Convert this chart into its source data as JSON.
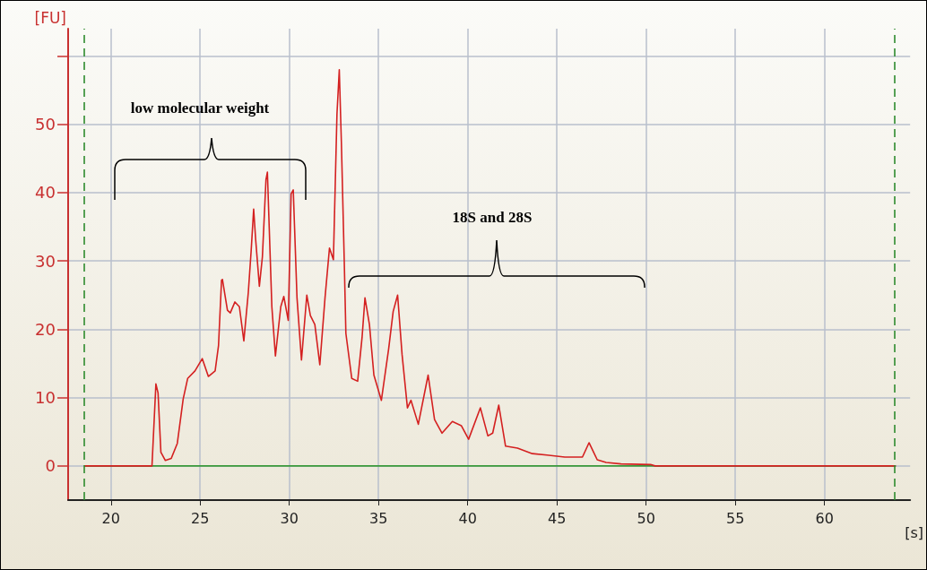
{
  "chart_data": {
    "type": "line",
    "xlabel": "[s]",
    "ylabel": "[FU]",
    "xlim": [
      17.6,
      64.8
    ],
    "ylim": [
      -5,
      64
    ],
    "xticks": [
      20,
      25,
      30,
      35,
      40,
      45,
      50,
      55,
      60
    ],
    "yticks": [
      0,
      10,
      20,
      30,
      40,
      50,
      {
        "value": 60,
        "label": null
      }
    ],
    "grid": true,
    "marker": "none",
    "series": [
      {
        "color": "#3a9a3a",
        "x": [
          18.5,
          41.3,
          64
        ],
        "values": [
          0,
          0,
          0
        ]
      },
      {
        "color": "#d42020",
        "x": [
          18.5,
          22.3,
          22.52,
          22.64,
          22.8,
          23.05,
          23.38,
          23.72,
          24.05,
          24.3,
          24.71,
          25.12,
          25.46,
          25.84,
          26.03,
          26.2,
          26.25,
          26.53,
          26.69,
          26.95,
          27.2,
          27.45,
          27.7,
          27.86,
          28.0,
          28.11,
          28.32,
          28.49,
          28.69,
          28.77,
          29.02,
          29.22,
          29.52,
          29.69,
          29.94,
          30.1,
          30.22,
          30.43,
          30.68,
          30.98,
          31.18,
          31.43,
          31.71,
          32.0,
          32.25,
          32.47,
          32.67,
          32.8,
          32.92,
          33.08,
          33.17,
          33.5,
          33.83,
          34.08,
          34.24,
          34.49,
          34.74,
          35.16,
          35.57,
          35.82,
          36.07,
          36.32,
          36.62,
          36.82,
          37.23,
          37.78,
          38.14,
          38.56,
          39.14,
          39.64,
          40.05,
          40.71,
          41.13,
          41.4,
          41.74,
          42.12,
          42.79,
          43.62,
          44.44,
          45.44,
          46.43,
          46.8,
          47.26,
          47.76,
          48.59,
          50.25,
          50.5,
          64
        ],
        "values": [
          0,
          0,
          12.0,
          10.7,
          2.0,
          0.8,
          1.1,
          3.3,
          9.8,
          12.8,
          13.9,
          15.7,
          13.1,
          13.9,
          17.6,
          27.2,
          27.3,
          22.8,
          22.4,
          24.0,
          23.3,
          18.3,
          25.4,
          31.5,
          37.6,
          33.2,
          26.3,
          30.6,
          41.9,
          43.0,
          23.3,
          16.1,
          23.3,
          24.8,
          21.3,
          39.8,
          40.4,
          24.6,
          15.5,
          25.0,
          22.0,
          20.7,
          14.8,
          24.6,
          31.9,
          30.2,
          51.5,
          58.0,
          47.1,
          29.8,
          19.4,
          12.8,
          12.4,
          18.9,
          24.6,
          20.7,
          13.3,
          9.6,
          17.2,
          22.6,
          25.0,
          16.3,
          8.5,
          9.6,
          6.1,
          13.3,
          6.8,
          4.8,
          6.5,
          5.9,
          3.9,
          8.5,
          4.4,
          4.8,
          8.9,
          2.9,
          2.6,
          1.8,
          1.6,
          1.3,
          1.3,
          3.4,
          0.9,
          0.5,
          0.3,
          0.2,
          0,
          0
        ]
      }
    ],
    "ref_lines": [
      {
        "axis": "x",
        "value": 18.5,
        "color": "#2e8b2e",
        "line_style": "dashed"
      },
      {
        "axis": "x",
        "value": 63.9,
        "color": "#2e8b2e",
        "line_style": "dashed"
      }
    ],
    "annotations": [
      "low molecular weight",
      "18S and 28S"
    ]
  }
}
